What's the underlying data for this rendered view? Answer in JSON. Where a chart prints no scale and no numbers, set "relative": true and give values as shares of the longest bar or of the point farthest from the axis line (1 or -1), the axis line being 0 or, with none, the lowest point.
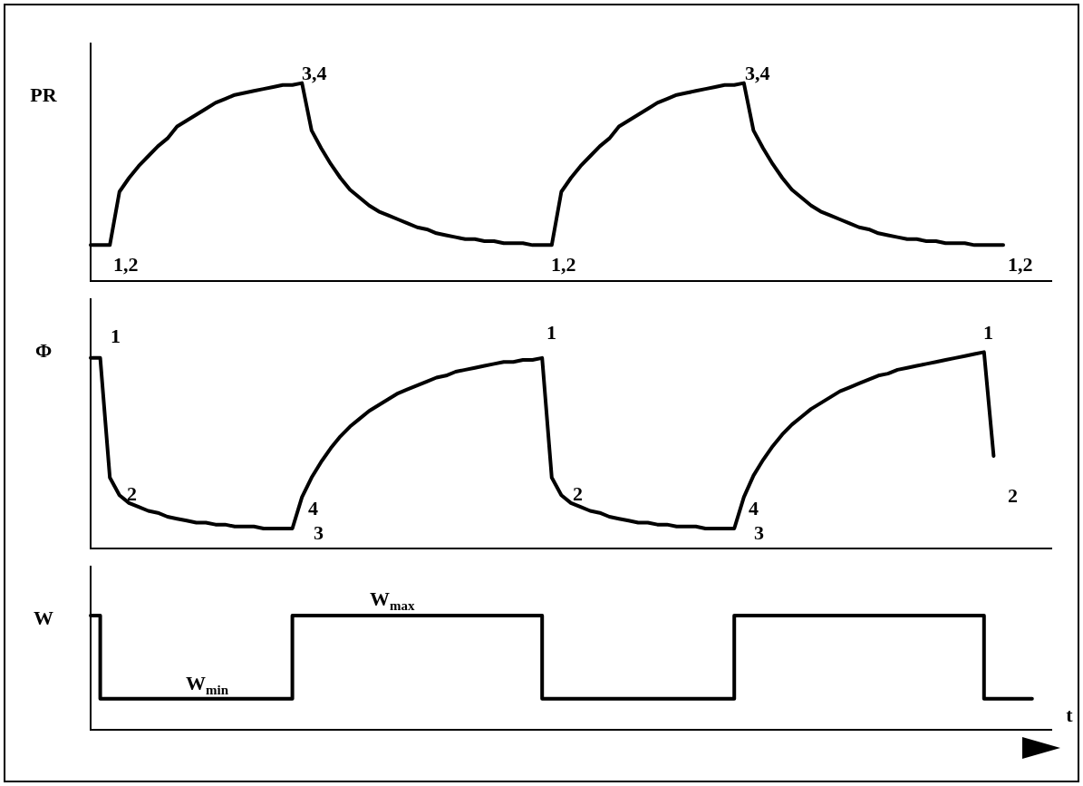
{
  "chart_data": [
    {
      "type": "line",
      "relative": true,
      "ylabel": "PR",
      "legend": false,
      "marker": "none",
      "line_style": "solid",
      "categories": [
        null,
        null,
        null,
        null,
        null,
        null,
        null,
        null,
        null,
        null,
        null,
        null,
        null,
        null,
        null,
        null,
        null,
        null,
        null,
        null,
        null,
        null,
        null,
        null,
        null,
        null,
        null,
        null,
        null,
        null,
        null,
        null,
        null,
        null,
        null,
        null,
        null,
        null,
        null,
        null,
        null,
        null,
        null,
        null,
        null,
        null,
        null,
        null,
        null,
        null,
        null,
        null,
        null,
        null,
        null,
        null,
        null,
        null,
        null,
        null,
        null,
        null,
        null,
        null,
        null,
        null,
        null,
        null,
        null,
        null,
        null,
        null,
        null,
        null,
        null,
        null,
        null,
        null,
        null,
        null,
        null,
        null,
        null,
        null,
        null,
        null,
        null,
        null,
        null,
        null,
        null,
        null,
        null,
        null,
        null,
        null,
        null,
        null,
        null,
        null,
        null
      ],
      "series": [
        {
          "color": "#000000",
          "values": [
            0.18,
            0.18,
            0.18,
            0.45,
            0.52,
            0.58,
            0.63,
            0.68,
            0.72,
            0.78,
            0.81,
            0.84,
            0.87,
            0.9,
            0.92,
            0.94,
            0.95,
            0.96,
            0.97,
            0.98,
            0.99,
            0.99,
            1,
            0.76,
            0.67,
            0.59,
            0.52,
            0.46,
            0.42,
            0.38,
            0.35,
            0.33,
            0.31,
            0.29,
            0.27,
            0.26,
            0.24,
            0.23,
            0.22,
            0.21,
            0.21,
            0.2,
            0.2,
            0.19,
            0.19,
            0.19,
            0.18,
            0.18,
            0.18,
            0.45,
            0.52,
            0.58,
            0.63,
            0.68,
            0.72,
            0.78,
            0.81,
            0.84,
            0.87,
            0.9,
            0.92,
            0.94,
            0.95,
            0.96,
            0.97,
            0.98,
            0.99,
            0.99,
            1,
            0.76,
            0.67,
            0.59,
            0.52,
            0.46,
            0.42,
            0.38,
            0.35,
            0.33,
            0.31,
            0.29,
            0.27,
            0.26,
            0.24,
            0.23,
            0.22,
            0.21,
            0.21,
            0.2,
            0.2,
            0.19,
            0.19,
            0.19,
            0.18,
            0.18,
            0.18,
            0.18,
            null,
            null,
            null,
            null,
            null
          ]
        }
      ],
      "annotations": [
        "1,2",
        "3,4",
        "1,2",
        "3,4",
        "1,2"
      ]
    },
    {
      "type": "line",
      "relative": true,
      "ylabel": "Φ",
      "legend": false,
      "marker": "none",
      "line_style": "solid",
      "categories": [
        null,
        null,
        null,
        null,
        null,
        null,
        null,
        null,
        null,
        null,
        null,
        null,
        null,
        null,
        null,
        null,
        null,
        null,
        null,
        null,
        null,
        null,
        null,
        null,
        null,
        null,
        null,
        null,
        null,
        null,
        null,
        null,
        null,
        null,
        null,
        null,
        null,
        null,
        null,
        null,
        null,
        null,
        null,
        null,
        null,
        null,
        null,
        null,
        null,
        null,
        null,
        null,
        null,
        null,
        null,
        null,
        null,
        null,
        null,
        null,
        null,
        null,
        null,
        null,
        null,
        null,
        null,
        null,
        null,
        null,
        null,
        null,
        null,
        null,
        null,
        null,
        null,
        null,
        null,
        null,
        null,
        null,
        null,
        null,
        null,
        null,
        null,
        null,
        null,
        null,
        null,
        null,
        null,
        null,
        null,
        null,
        null,
        null,
        null,
        null,
        null
      ],
      "series": [
        {
          "color": "#000000",
          "values": [
            0.97,
            0.97,
            0.36,
            0.27,
            0.23,
            0.21,
            0.19,
            0.18,
            0.16,
            0.15,
            0.14,
            0.13,
            0.13,
            0.12,
            0.12,
            0.11,
            0.11,
            0.11,
            0.1,
            0.1,
            0.1,
            0.1,
            0.26,
            0.36,
            0.44,
            0.51,
            0.57,
            0.62,
            0.66,
            0.7,
            0.73,
            0.76,
            0.79,
            0.81,
            0.83,
            0.85,
            0.87,
            0.88,
            0.9,
            0.91,
            0.92,
            0.93,
            0.94,
            0.95,
            0.95,
            0.96,
            0.96,
            0.97,
            0.36,
            0.27,
            0.23,
            0.21,
            0.19,
            0.18,
            0.16,
            0.15,
            0.14,
            0.13,
            0.13,
            0.12,
            0.12,
            0.11,
            0.11,
            0.11,
            0.1,
            0.1,
            0.1,
            0.1,
            0.26,
            0.37,
            0.45,
            0.52,
            0.58,
            0.63,
            0.67,
            0.71,
            0.74,
            0.77,
            0.8,
            0.82,
            0.84,
            0.86,
            0.88,
            0.89,
            0.91,
            0.92,
            0.93,
            0.94,
            0.95,
            0.96,
            0.97,
            0.98,
            0.99,
            1,
            0.47,
            null,
            null,
            null,
            null,
            null,
            null
          ]
        }
      ],
      "annotations": [
        "1",
        "2",
        "4",
        "3",
        "1",
        "2",
        "4",
        "3",
        "1",
        "2"
      ]
    },
    {
      "type": "step",
      "relative": true,
      "ylabel": "W",
      "xlabel": "t",
      "legend": false,
      "marker": "none",
      "line_style": "solid",
      "categories": [
        null,
        null,
        null,
        null,
        null,
        null,
        null,
        null,
        null,
        null,
        null,
        null,
        null,
        null,
        null,
        null,
        null,
        null,
        null,
        null,
        null,
        null,
        null,
        null,
        null,
        null,
        null,
        null,
        null,
        null,
        null,
        null,
        null,
        null,
        null,
        null,
        null,
        null,
        null,
        null,
        null,
        null,
        null,
        null,
        null,
        null,
        null,
        null,
        null,
        null,
        null,
        null,
        null,
        null,
        null,
        null,
        null,
        null,
        null,
        null,
        null,
        null,
        null,
        null,
        null,
        null,
        null,
        null,
        null,
        null,
        null,
        null,
        null,
        null,
        null,
        null,
        null,
        null,
        null,
        null,
        null,
        null,
        null,
        null,
        null,
        null,
        null,
        null,
        null,
        null,
        null,
        null,
        null,
        null,
        null,
        null,
        null,
        null,
        null,
        null,
        null
      ],
      "series": [
        {
          "color": "#000000",
          "values": [
            1,
            1,
            0.27,
            0.27,
            0.27,
            0.27,
            0.27,
            0.27,
            0.27,
            0.27,
            0.27,
            0.27,
            0.27,
            0.27,
            0.27,
            0.27,
            0.27,
            0.27,
            0.27,
            0.27,
            0.27,
            0.27,
            1,
            1,
            1,
            1,
            1,
            1,
            1,
            1,
            1,
            1,
            1,
            1,
            1,
            1,
            1,
            1,
            1,
            1,
            1,
            1,
            1,
            1,
            1,
            1,
            1,
            1,
            0.27,
            0.27,
            0.27,
            0.27,
            0.27,
            0.27,
            0.27,
            0.27,
            0.27,
            0.27,
            0.27,
            0.27,
            0.27,
            0.27,
            0.27,
            0.27,
            0.27,
            0.27,
            0.27,
            0.27,
            1,
            1,
            1,
            1,
            1,
            1,
            1,
            1,
            1,
            1,
            1,
            1,
            1,
            1,
            1,
            1,
            1,
            1,
            1,
            1,
            1,
            1,
            1,
            1,
            1,
            1,
            0.27,
            0.27,
            0.27,
            0.27,
            0.27,
            null,
            null
          ]
        }
      ],
      "annotations": [
        "W$_{min}$",
        "W$_{max}$"
      ]
    }
  ]
}
